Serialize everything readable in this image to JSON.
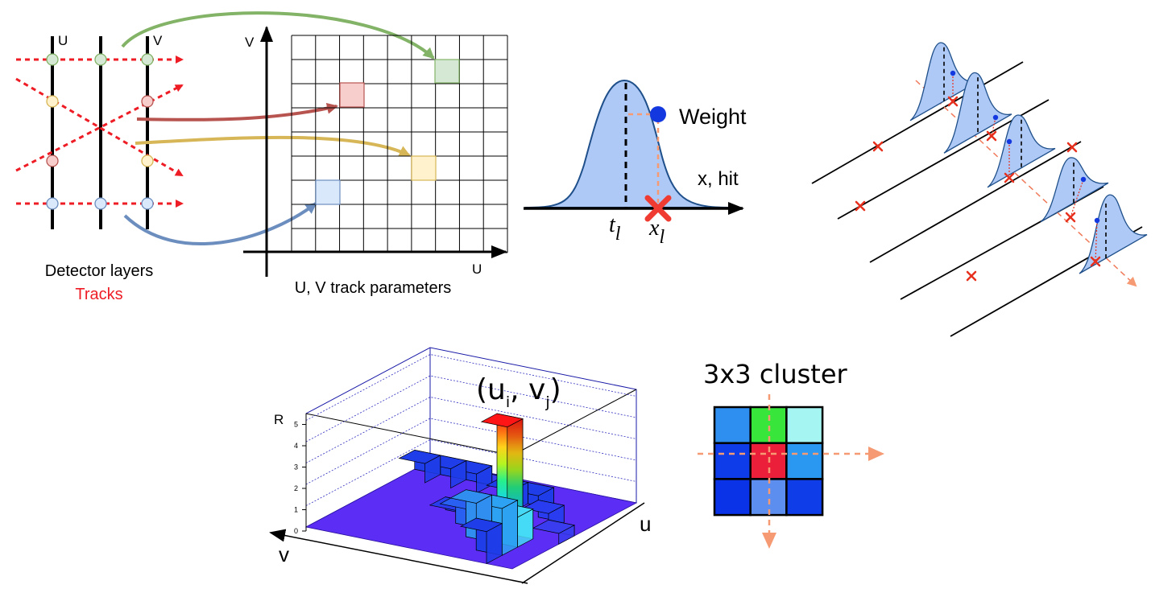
{
  "tracking": {
    "detector_label_u": "U",
    "detector_label_v": "V",
    "legend_layers": "Detector layers",
    "legend_tracks": "Tracks",
    "colors": {
      "track": "#ee1c25",
      "green": "#82b366",
      "red": "#b85450",
      "yellow": "#d6b656",
      "blue": "#6c8ebf"
    }
  },
  "hough_grid": {
    "axis_v": "V",
    "axis_u": "U",
    "caption": "U, V track parameters",
    "rows": 9,
    "cols": 9
  },
  "weight_panel": {
    "weight_label": "Weight",
    "x_axis_label": "x, hit",
    "t_label": "t",
    "t_sub": "l",
    "x_label": "x",
    "x_sub": "l"
  },
  "histogram_3d": {
    "peak_label_u": "(u",
    "peak_label_i": "i",
    "peak_label_sep": ", v",
    "peak_label_j": "j",
    "peak_label_close": ")",
    "axis_r": "R",
    "axis_u": "u",
    "axis_v": "v",
    "r_ticks": [
      "0",
      "1",
      "2",
      "3",
      "4",
      "5"
    ]
  },
  "cluster": {
    "title": "3x3 cluster",
    "cells": [
      "#2f8ff0",
      "#38e63b",
      "#a5f5f2",
      "#0e3ce8",
      "#ec1f3a",
      "#2a98f0",
      "#0a32e6",
      "#5c8ef0",
      "#0f3ee8"
    ]
  }
}
